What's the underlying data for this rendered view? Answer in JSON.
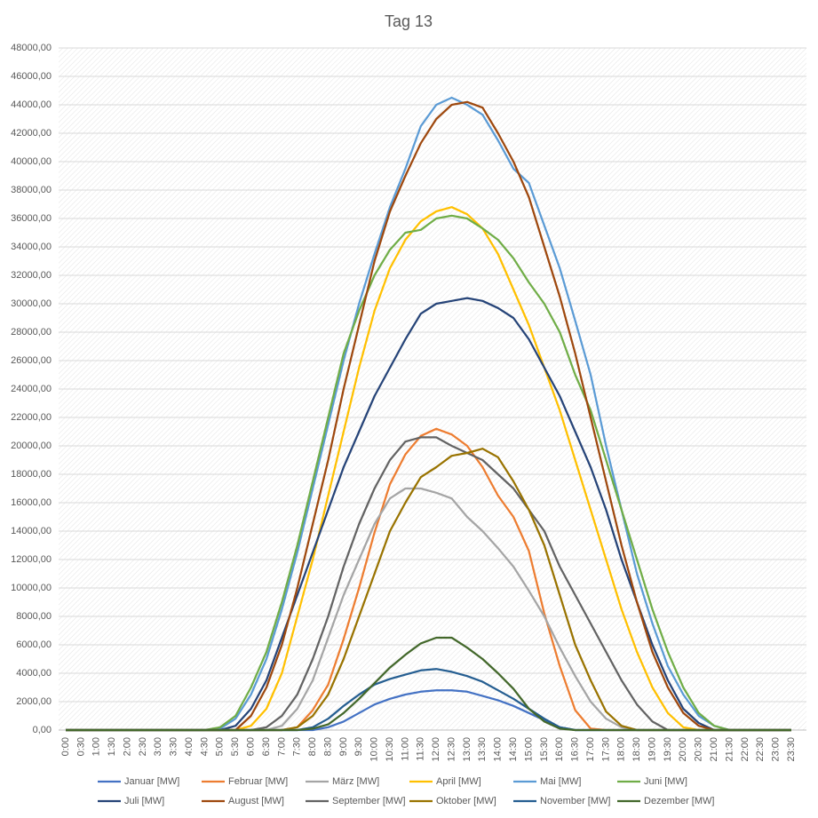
{
  "chart_data": {
    "type": "line",
    "title": "Tag 13",
    "categories": [
      "0:00",
      "0:30",
      "1:00",
      "1:30",
      "2:00",
      "2:30",
      "3:00",
      "3:30",
      "4:00",
      "4:30",
      "5:00",
      "5:30",
      "6:00",
      "6:30",
      "7:00",
      "7:30",
      "8:00",
      "8:30",
      "9:00",
      "9:30",
      "10:00",
      "10:30",
      "11:00",
      "11:30",
      "12:00",
      "12:30",
      "13:00",
      "13:30",
      "14:00",
      "14:30",
      "15:00",
      "15:30",
      "16:00",
      "16:30",
      "17:00",
      "17:30",
      "18:00",
      "18:30",
      "19:00",
      "19:30",
      "20:00",
      "20:30",
      "21:00",
      "21:30",
      "22:00",
      "22:30",
      "23:00",
      "23:30"
    ],
    "ylim": [
      0,
      48000
    ],
    "yticks": [
      {
        "value": 0,
        "label": "0,00"
      },
      {
        "value": 2000,
        "label": "2000,00"
      },
      {
        "value": 4000,
        "label": "4000,00"
      },
      {
        "value": 6000,
        "label": "6000,00"
      },
      {
        "value": 8000,
        "label": "8000,00"
      },
      {
        "value": 10000,
        "label": "10000,00"
      },
      {
        "value": 12000,
        "label": "12000,00"
      },
      {
        "value": 14000,
        "label": "14000,00"
      },
      {
        "value": 16000,
        "label": "16000,00"
      },
      {
        "value": 18000,
        "label": "18000,00"
      },
      {
        "value": 20000,
        "label": "20000,00"
      },
      {
        "value": 22000,
        "label": "22000,00"
      },
      {
        "value": 24000,
        "label": "24000,00"
      },
      {
        "value": 26000,
        "label": "26000,00"
      },
      {
        "value": 28000,
        "label": "28000,00"
      },
      {
        "value": 30000,
        "label": "30000,00"
      },
      {
        "value": 32000,
        "label": "32000,00"
      },
      {
        "value": 34000,
        "label": "34000,00"
      },
      {
        "value": 36000,
        "label": "36000,00"
      },
      {
        "value": 38000,
        "label": "38000,00"
      },
      {
        "value": 40000,
        "label": "40000,00"
      },
      {
        "value": 42000,
        "label": "42000,00"
      },
      {
        "value": 44000,
        "label": "44000,00"
      },
      {
        "value": 46000,
        "label": "46000,00"
      },
      {
        "value": 48000,
        "label": "48000,00"
      }
    ],
    "grid": true,
    "legend": "bottom",
    "series": [
      {
        "name": "Januar [MW]",
        "color": "#4472c4",
        "values": [
          0,
          0,
          0,
          0,
          0,
          0,
          0,
          0,
          0,
          0,
          0,
          0,
          0,
          0,
          0,
          0,
          0,
          200,
          600,
          1200,
          1800,
          2200,
          2500,
          2700,
          2800,
          2800,
          2700,
          2400,
          2100,
          1700,
          1200,
          700,
          200,
          0,
          0,
          0,
          0,
          0,
          0,
          0,
          0,
          0,
          0,
          0,
          0,
          0,
          0,
          0
        ]
      },
      {
        "name": "Februar [MW]",
        "color": "#ed7d31",
        "values": [
          0,
          0,
          0,
          0,
          0,
          0,
          0,
          0,
          0,
          0,
          0,
          0,
          0,
          0,
          0,
          200,
          1400,
          3200,
          6400,
          10000,
          13900,
          17300,
          19400,
          20700,
          21200,
          20800,
          20000,
          18500,
          16500,
          15000,
          12600,
          8200,
          4500,
          1400,
          100,
          0,
          0,
          0,
          0,
          0,
          0,
          0,
          0,
          0,
          0,
          0,
          0,
          0
        ]
      },
      {
        "name": "März [MW]",
        "color": "#a5a5a5",
        "values": [
          0,
          0,
          0,
          0,
          0,
          0,
          0,
          0,
          0,
          0,
          0,
          0,
          0,
          0,
          300,
          1500,
          3500,
          6500,
          9500,
          12000,
          14500,
          16300,
          17000,
          17000,
          16700,
          16300,
          15000,
          14000,
          12800,
          11500,
          9800,
          8000,
          5800,
          3800,
          2000,
          800,
          200,
          0,
          0,
          0,
          0,
          0,
          0,
          0,
          0,
          0,
          0,
          0
        ]
      },
      {
        "name": "April [MW]",
        "color": "#ffc000",
        "values": [
          0,
          0,
          0,
          0,
          0,
          0,
          0,
          0,
          0,
          0,
          0,
          0,
          300,
          1500,
          4000,
          8000,
          12000,
          16500,
          21000,
          25500,
          29500,
          32500,
          34500,
          35800,
          36500,
          36800,
          36300,
          35300,
          33500,
          31000,
          28500,
          25500,
          22500,
          19000,
          15500,
          12000,
          8500,
          5500,
          3000,
          1200,
          200,
          0,
          0,
          0,
          0,
          0,
          0,
          0
        ]
      },
      {
        "name": "Mai [MW]",
        "color": "#5b9bd5",
        "values": [
          0,
          0,
          0,
          0,
          0,
          0,
          0,
          0,
          0,
          0,
          100,
          800,
          2500,
          5000,
          8500,
          12500,
          17000,
          21500,
          26000,
          30000,
          33500,
          36800,
          39500,
          42500,
          44000,
          44500,
          44000,
          43300,
          41500,
          39500,
          38500,
          35500,
          32500,
          28800,
          25000,
          20000,
          15500,
          11000,
          7500,
          4500,
          2500,
          1000,
          300,
          0,
          0,
          0,
          0,
          0
        ]
      },
      {
        "name": "Juni [MW]",
        "color": "#70ad47",
        "values": [
          0,
          0,
          0,
          0,
          0,
          0,
          0,
          0,
          0,
          0,
          200,
          1000,
          3000,
          5500,
          9000,
          13000,
          17500,
          22000,
          26500,
          29500,
          32000,
          33800,
          35000,
          35200,
          36000,
          36200,
          36000,
          35300,
          34500,
          33200,
          31500,
          30000,
          28000,
          25000,
          22500,
          19000,
          15500,
          12000,
          8500,
          5500,
          3000,
          1200,
          300,
          0,
          0,
          0,
          0,
          0
        ]
      },
      {
        "name": "Juli [MW]",
        "color": "#264478",
        "values": [
          0,
          0,
          0,
          0,
          0,
          0,
          0,
          0,
          0,
          0,
          0,
          300,
          1500,
          3500,
          6500,
          9500,
          12500,
          15500,
          18500,
          21000,
          23500,
          25500,
          27500,
          29300,
          30000,
          30200,
          30400,
          30200,
          29700,
          29000,
          27500,
          25500,
          23500,
          21000,
          18500,
          15500,
          12000,
          9000,
          6000,
          3500,
          1500,
          500,
          0,
          0,
          0,
          0,
          0,
          0
        ]
      },
      {
        "name": "August [MW]",
        "color": "#9e480e",
        "values": [
          0,
          0,
          0,
          0,
          0,
          0,
          0,
          0,
          0,
          0,
          0,
          0,
          1000,
          3000,
          6000,
          10000,
          14500,
          19000,
          24000,
          28500,
          33000,
          36500,
          39000,
          41300,
          43000,
          44000,
          44200,
          43800,
          42000,
          40000,
          37500,
          34000,
          30500,
          26500,
          22000,
          17500,
          13000,
          9000,
          5500,
          3000,
          1200,
          300,
          0,
          0,
          0,
          0,
          0,
          0
        ]
      },
      {
        "name": "September [MW]",
        "color": "#636363",
        "values": [
          0,
          0,
          0,
          0,
          0,
          0,
          0,
          0,
          0,
          0,
          0,
          0,
          0,
          200,
          1000,
          2500,
          5000,
          8000,
          11500,
          14500,
          17000,
          19000,
          20300,
          20600,
          20600,
          20000,
          19500,
          19000,
          18000,
          17000,
          15500,
          14000,
          11500,
          9500,
          7500,
          5500,
          3500,
          1800,
          600,
          0,
          0,
          0,
          0,
          0,
          0,
          0,
          0,
          0
        ]
      },
      {
        "name": "Oktober [MW]",
        "color": "#997300",
        "values": [
          0,
          0,
          0,
          0,
          0,
          0,
          0,
          0,
          0,
          0,
          0,
          0,
          0,
          0,
          0,
          200,
          1000,
          2500,
          5000,
          8000,
          11000,
          14000,
          16000,
          17800,
          18500,
          19300,
          19500,
          19800,
          19200,
          17500,
          15500,
          13000,
          9500,
          6000,
          3500,
          1300,
          300,
          0,
          0,
          0,
          0,
          0,
          0,
          0,
          0,
          0,
          0,
          0
        ]
      },
      {
        "name": "November [MW]",
        "color": "#255e91",
        "values": [
          0,
          0,
          0,
          0,
          0,
          0,
          0,
          0,
          0,
          0,
          0,
          0,
          0,
          0,
          0,
          0,
          200,
          800,
          1700,
          2500,
          3200,
          3600,
          3900,
          4200,
          4300,
          4100,
          3800,
          3400,
          2800,
          2200,
          1500,
          800,
          200,
          0,
          0,
          0,
          0,
          0,
          0,
          0,
          0,
          0,
          0,
          0,
          0,
          0,
          0,
          0
        ]
      },
      {
        "name": "Dezember [MW]",
        "color": "#43682b",
        "values": [
          0,
          0,
          0,
          0,
          0,
          0,
          0,
          0,
          0,
          0,
          0,
          0,
          0,
          0,
          0,
          0,
          100,
          400,
          1200,
          2200,
          3300,
          4400,
          5300,
          6100,
          6500,
          6500,
          5800,
          5000,
          4000,
          2900,
          1500,
          600,
          100,
          0,
          0,
          0,
          0,
          0,
          0,
          0,
          0,
          0,
          0,
          0,
          0,
          0,
          0,
          0
        ]
      }
    ]
  }
}
